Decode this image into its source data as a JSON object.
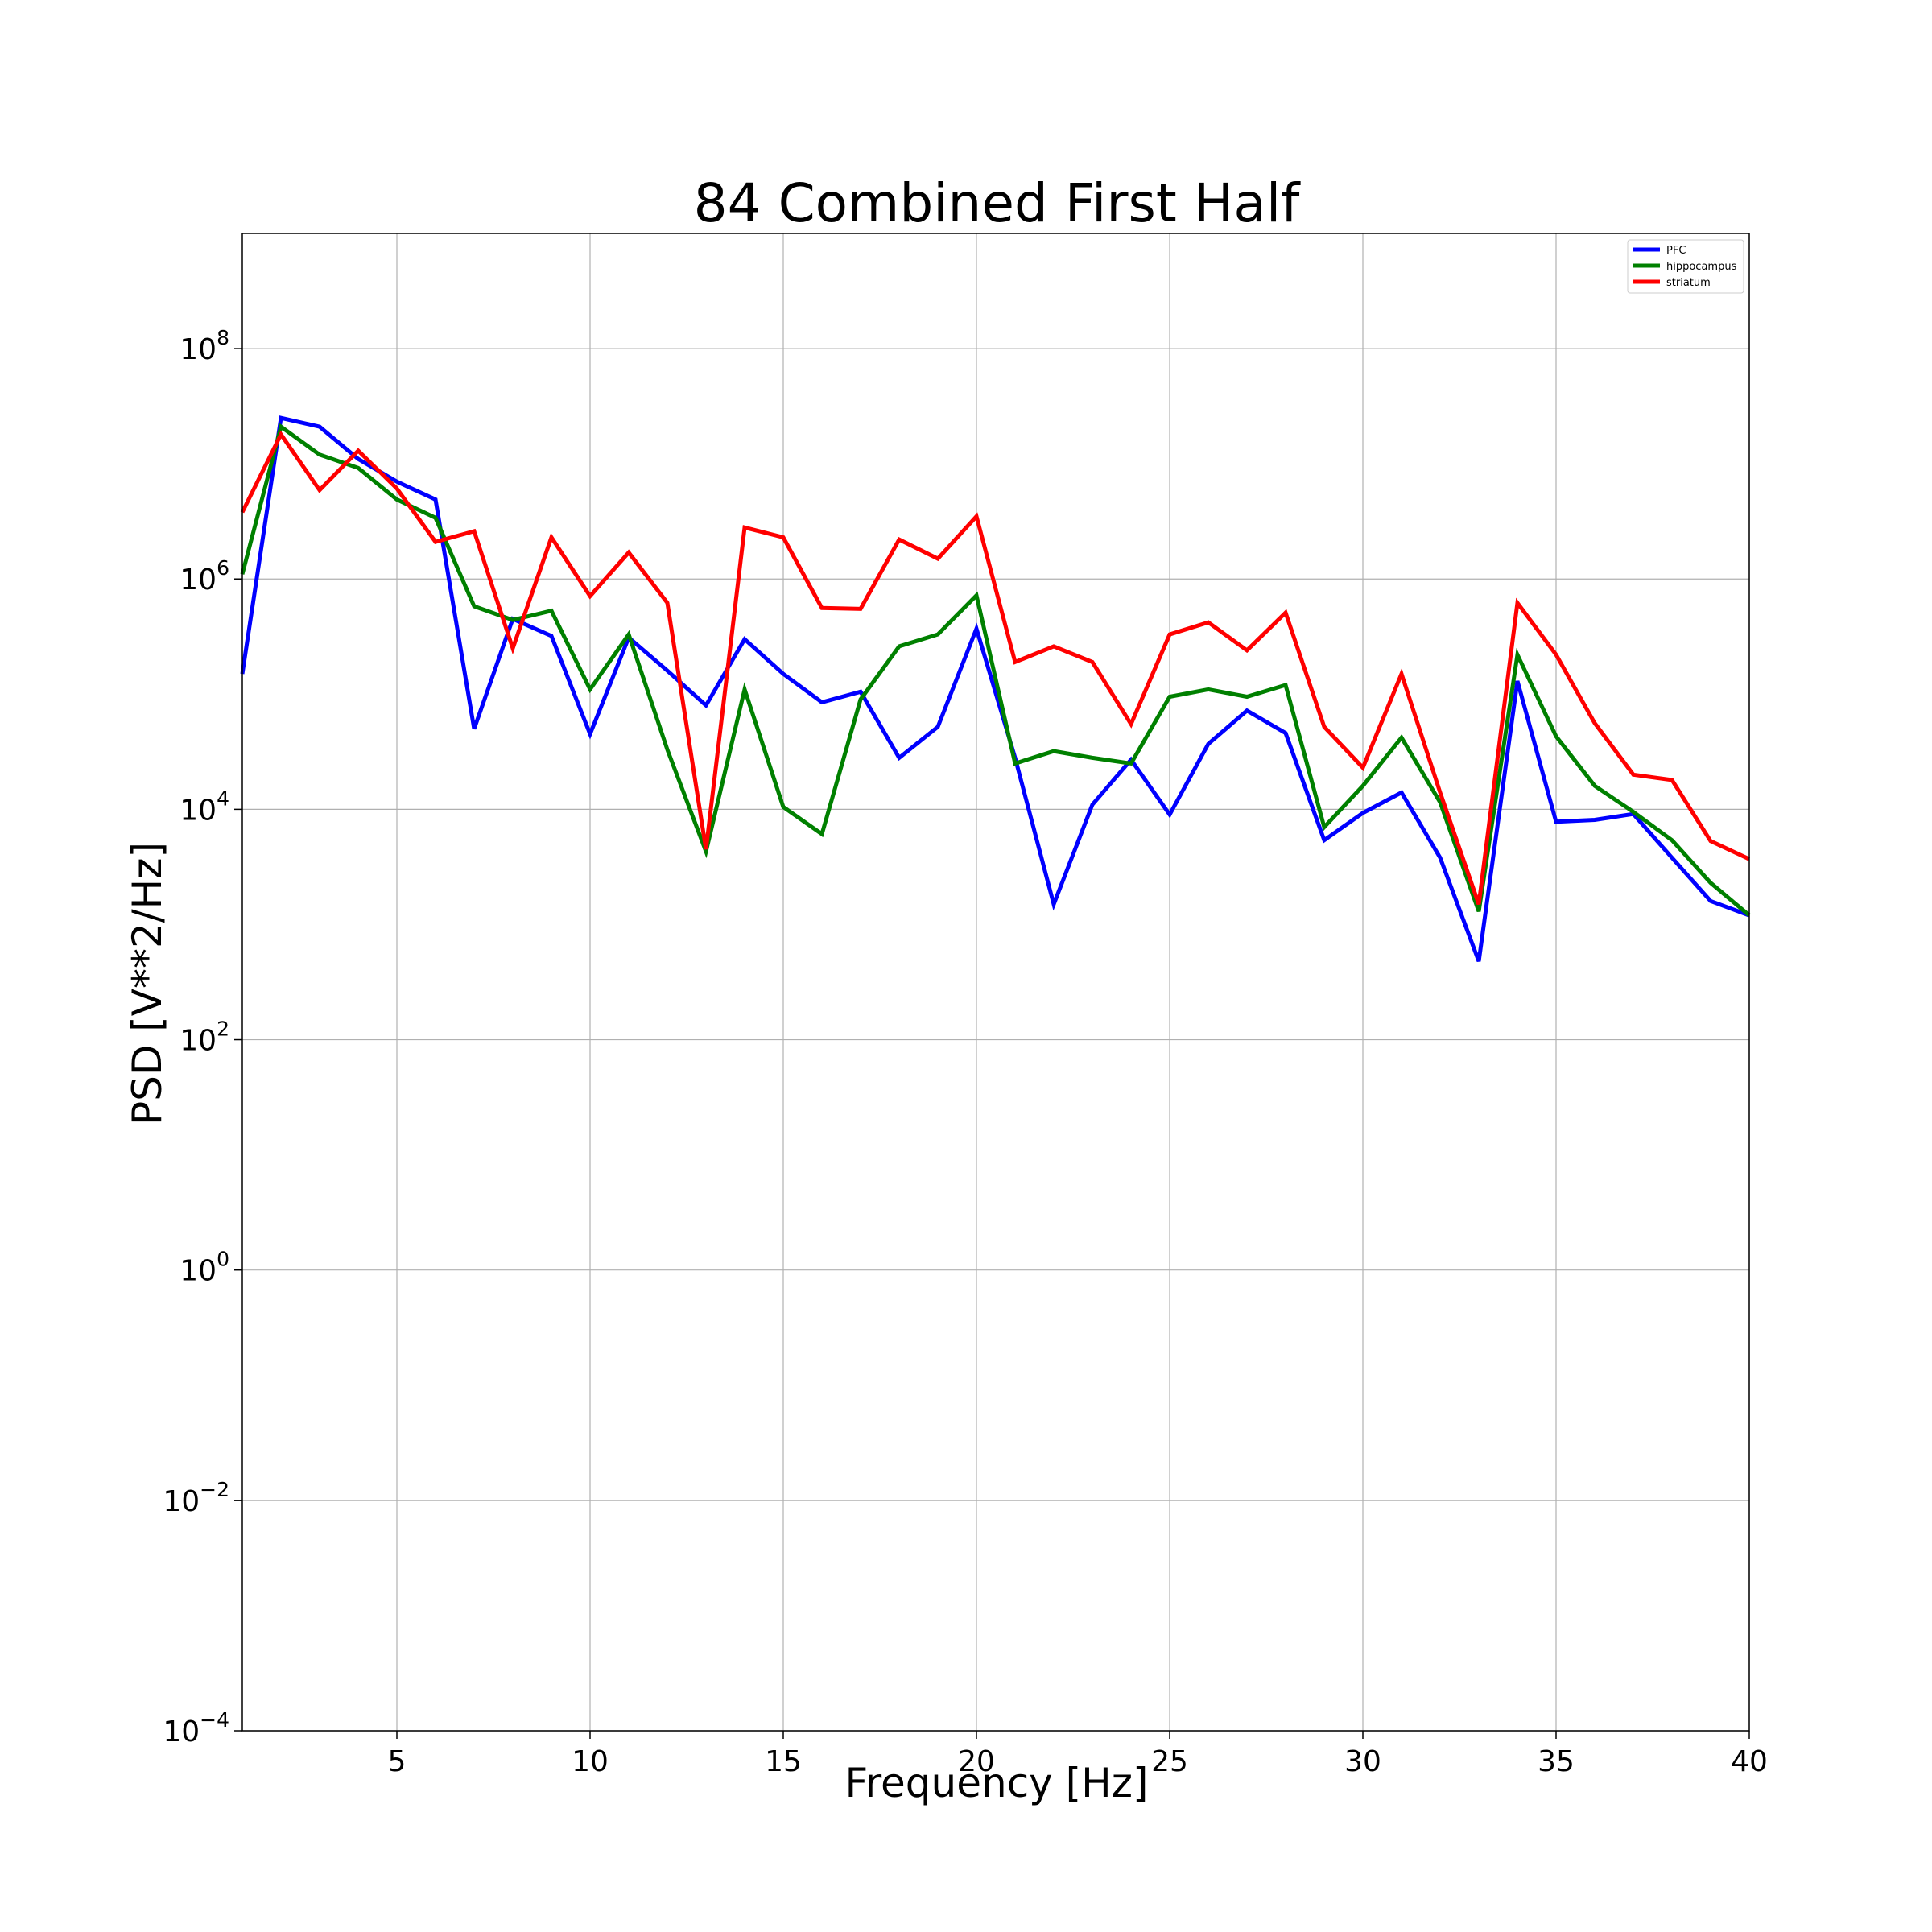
{
  "chart_data": {
    "type": "line",
    "title": "84 Combined First Half",
    "xlabel": "Frequency [Hz]",
    "ylabel": "PSD [V**2/Hz]",
    "xlim": [
      1,
      40
    ],
    "ylim": [
      0.0001,
      1000000000
    ],
    "yscale": "log",
    "grid": true,
    "legend_position": "top-right",
    "x_ticks": [
      5,
      10,
      15,
      20,
      25,
      30,
      35,
      40
    ],
    "y_ticks": [
      {
        "value": 0.0001,
        "base": "10",
        "exp": "−4"
      },
      {
        "value": 0.01,
        "base": "10",
        "exp": "−2"
      },
      {
        "value": 1,
        "base": "10",
        "exp": "0"
      },
      {
        "value": 100,
        "base": "10",
        "exp": "2"
      },
      {
        "value": 10000,
        "base": "10",
        "exp": "4"
      },
      {
        "value": 1000000,
        "base": "10",
        "exp": "6"
      },
      {
        "value": 100000000,
        "base": "10",
        "exp": "8"
      }
    ],
    "x": [
      1,
      2,
      3,
      4,
      5,
      6,
      7,
      8,
      9,
      10,
      11,
      12,
      13,
      14,
      15,
      16,
      17,
      18,
      19,
      20,
      21,
      22,
      23,
      24,
      25,
      26,
      27,
      28,
      29,
      30,
      31,
      32,
      33,
      34,
      35,
      36,
      37,
      38,
      39,
      40
    ],
    "series": [
      {
        "name": "PFC",
        "color": "#0000ff",
        "values": [
          150000,
          25000000,
          21000000,
          11000000,
          7000000,
          4900000,
          50000,
          450000,
          320000,
          45000,
          310000,
          160000,
          80000,
          300000,
          150000,
          85000,
          105000,
          28000,
          52000,
          370000,
          28000,
          1500,
          11000,
          27000,
          9000,
          37000,
          72000,
          46000,
          5400,
          9300,
          14000,
          3800,
          480,
          130000,
          7800,
          8100,
          9100,
          3800,
          1600,
          1200
        ]
      },
      {
        "name": "hippocampus",
        "color": "#008000",
        "values": [
          1100000,
          21000000,
          12000000,
          9200000,
          4900000,
          3400000,
          580000,
          440000,
          530000,
          110000,
          330000,
          33000,
          4300,
          110000,
          10500,
          6100,
          90000,
          260000,
          330000,
          720000,
          25000,
          32000,
          28000,
          25000,
          95000,
          110000,
          95000,
          120000,
          7000,
          16000,
          42000,
          11500,
          1300,
          220000,
          43000,
          16000,
          9500,
          5400,
          2300,
          1200
        ]
      },
      {
        "name": "striatum",
        "color": "#ff0000",
        "values": [
          3800000,
          18000000,
          5900000,
          13000000,
          6100000,
          2100000,
          2600000,
          250000,
          2300000,
          710000,
          1700000,
          620000,
          4500,
          2800000,
          2300000,
          560000,
          550000,
          2200000,
          1500000,
          3500000,
          190000,
          260000,
          190000,
          55000,
          330000,
          420000,
          240000,
          510000,
          52000,
          23000,
          150000,
          14000,
          1500,
          620000,
          220000,
          56000,
          20000,
          18000,
          5300,
          3700
        ]
      }
    ]
  }
}
